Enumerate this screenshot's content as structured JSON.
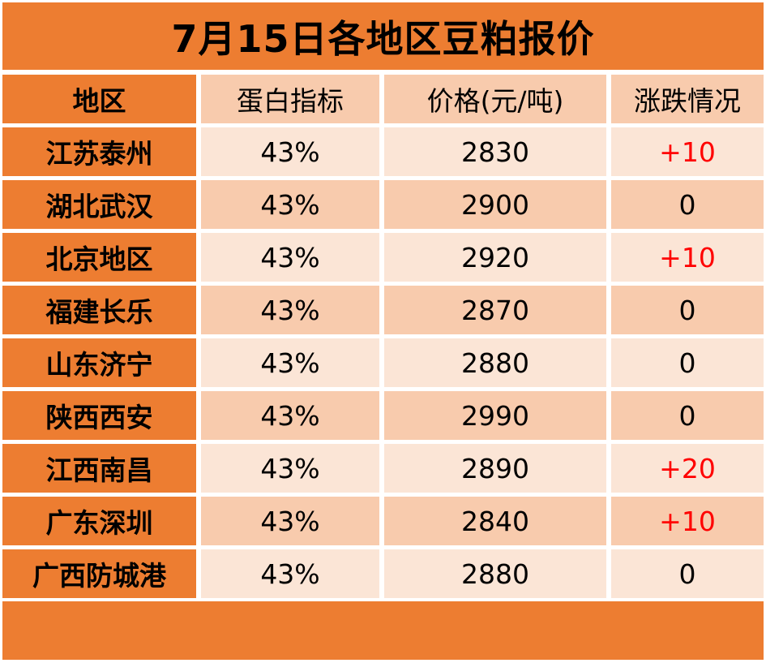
{
  "title": "7月15日各地区豆粕报价",
  "headers": [
    "地区",
    "蛋白指标",
    "价格(元/吨)",
    "涨跌情况"
  ],
  "rows": [
    {
      "region": "江苏泰州",
      "protein": "43%",
      "price": "2830",
      "change": "+10"
    },
    {
      "region": "湖北武汉",
      "protein": "43%",
      "price": "2900",
      "change": "0"
    },
    {
      "region": "北京地区",
      "protein": "43%",
      "price": "2920",
      "change": "+10"
    },
    {
      "region": "福建长乐",
      "protein": "43%",
      "price": "2870",
      "change": "0"
    },
    {
      "region": "山东济宁",
      "protein": "43%",
      "price": "2880",
      "change": "0"
    },
    {
      "region": "陕西西安",
      "protein": "43%",
      "price": "2990",
      "change": "0"
    },
    {
      "region": "江西南昌",
      "protein": "43%",
      "price": "2890",
      "change": "+20"
    },
    {
      "region": "广东深圳",
      "protein": "43%",
      "price": "2840",
      "change": "+10"
    },
    {
      "region": "广西防城港",
      "protein": "43%",
      "price": "2880",
      "change": "0"
    }
  ],
  "colors": {
    "orange": "#ED7D31",
    "peach": "#F8CBAD",
    "light_peach": "#FBE5D6",
    "rise": "#FF0000"
  }
}
